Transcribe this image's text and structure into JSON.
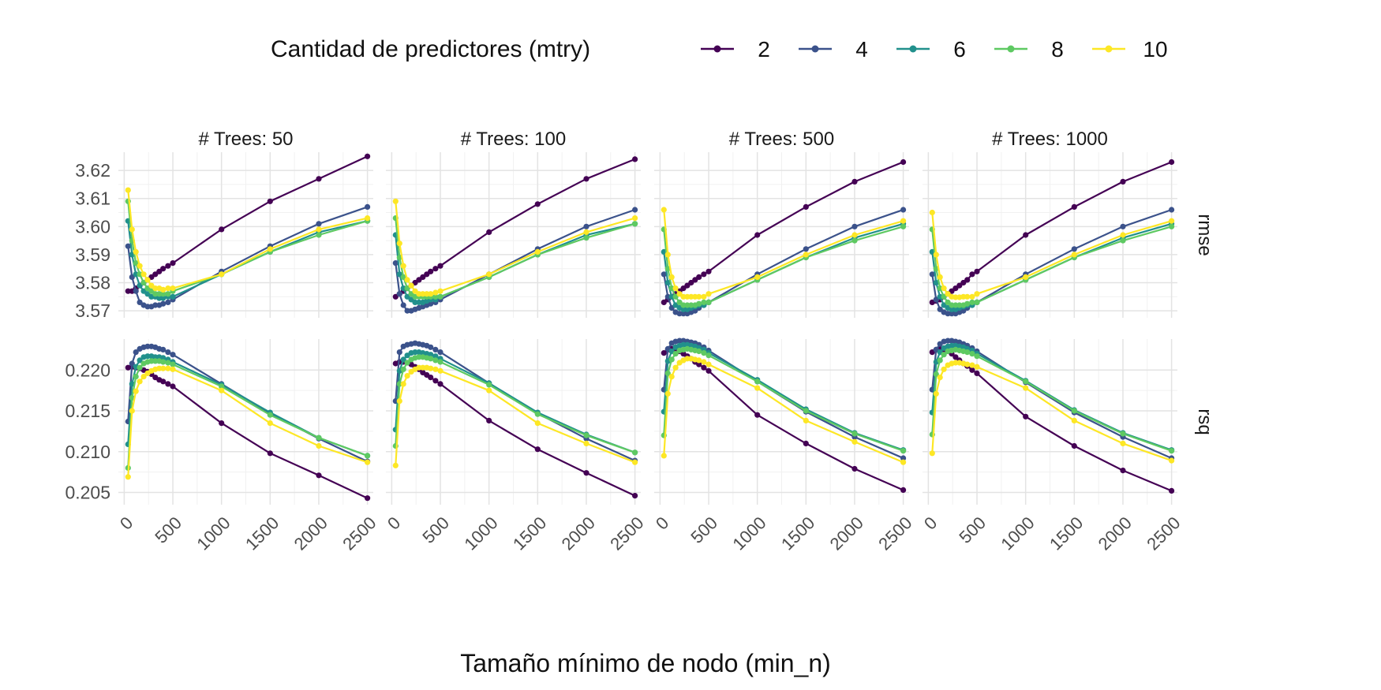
{
  "chart_data": {
    "type": "line",
    "xlabel": "Tamaño mínimo de nodo (min_n)",
    "ylabel": "",
    "legend": {
      "title": "Cantidad de predictores (mtry)",
      "position": "top"
    },
    "grid": true,
    "facet_cols": [
      "# Trees: 50",
      "# Trees: 100",
      "# Trees: 500",
      "# Trees: 1000"
    ],
    "facet_rows": [
      "rmse",
      "rsq"
    ],
    "x_ticks": [
      0,
      500,
      1000,
      1500,
      2000,
      2500
    ],
    "x_tick_labels": [
      "0",
      "500",
      "1000",
      "1500",
      "2000",
      "2500"
    ],
    "xlim": [
      -60,
      2560
    ],
    "x": [
      40,
      80,
      120,
      160,
      200,
      240,
      280,
      320,
      360,
      400,
      450,
      500,
      1000,
      1500,
      2000,
      2500
    ],
    "series": [
      {
        "name": "2",
        "color": "#440154"
      },
      {
        "name": "4",
        "color": "#3b528b"
      },
      {
        "name": "6",
        "color": "#21908c"
      },
      {
        "name": "8",
        "color": "#5ec962"
      },
      {
        "name": "10",
        "color": "#fde725"
      }
    ],
    "panels": [
      {
        "row": "rmse",
        "ylim": [
          3.5675,
          3.6265
        ],
        "y_ticks": [
          3.57,
          3.58,
          3.59,
          3.6,
          3.61,
          3.62
        ],
        "y_tick_labels": [
          "3.57",
          "3.58",
          "3.59",
          "3.60",
          "3.61",
          "3.62"
        ]
      },
      {
        "row": "rsq",
        "ylim": [
          0.2035,
          0.2238
        ],
        "y_ticks": [
          0.205,
          0.21,
          0.215,
          0.22
        ],
        "y_tick_labels": [
          "0.205",
          "0.210",
          "0.215",
          "0.220"
        ]
      }
    ],
    "values": {
      "rmse": [
        [
          [
            3.577,
            3.577,
            3.578,
            3.579,
            3.58,
            3.581,
            3.582,
            3.583,
            3.584,
            3.585,
            3.586,
            3.587,
            3.599,
            3.609,
            3.617,
            3.625
          ],
          [
            3.593,
            3.582,
            3.577,
            3.573,
            3.572,
            3.5715,
            3.5715,
            3.572,
            3.572,
            3.5725,
            3.573,
            3.574,
            3.584,
            3.593,
            3.601,
            3.607
          ],
          [
            3.602,
            3.59,
            3.583,
            3.579,
            3.577,
            3.576,
            3.575,
            3.575,
            3.5745,
            3.5745,
            3.575,
            3.575,
            3.583,
            3.591,
            3.598,
            3.602
          ],
          [
            3.609,
            3.595,
            3.587,
            3.583,
            3.58,
            3.578,
            3.577,
            3.576,
            3.576,
            3.576,
            3.576,
            3.577,
            3.583,
            3.591,
            3.597,
            3.602
          ],
          [
            3.613,
            3.599,
            3.591,
            3.586,
            3.583,
            3.581,
            3.579,
            3.578,
            3.578,
            3.5775,
            3.578,
            3.578,
            3.583,
            3.592,
            3.599,
            3.603
          ]
        ],
        [
          [
            3.575,
            3.576,
            3.577,
            3.578,
            3.579,
            3.58,
            3.581,
            3.582,
            3.583,
            3.584,
            3.585,
            3.586,
            3.598,
            3.608,
            3.617,
            3.624
          ],
          [
            3.587,
            3.576,
            3.572,
            3.57,
            3.57,
            3.5705,
            3.571,
            3.5715,
            3.572,
            3.5725,
            3.573,
            3.574,
            3.583,
            3.592,
            3.6,
            3.606
          ],
          [
            3.597,
            3.583,
            3.578,
            3.575,
            3.574,
            3.573,
            3.573,
            3.573,
            3.5735,
            3.574,
            3.574,
            3.575,
            3.582,
            3.59,
            3.597,
            3.601
          ],
          [
            3.603,
            3.589,
            3.582,
            3.578,
            3.576,
            3.575,
            3.575,
            3.575,
            3.575,
            3.575,
            3.575,
            3.575,
            3.582,
            3.59,
            3.596,
            3.601
          ],
          [
            3.609,
            3.594,
            3.586,
            3.581,
            3.579,
            3.577,
            3.576,
            3.576,
            3.576,
            3.576,
            3.5765,
            3.577,
            3.583,
            3.591,
            3.598,
            3.603
          ]
        ],
        [
          [
            3.573,
            3.574,
            3.575,
            3.576,
            3.577,
            3.578,
            3.579,
            3.58,
            3.581,
            3.582,
            3.583,
            3.584,
            3.597,
            3.607,
            3.616,
            3.623
          ],
          [
            3.583,
            3.575,
            3.571,
            3.5695,
            3.569,
            3.569,
            3.569,
            3.5695,
            3.57,
            3.571,
            3.572,
            3.573,
            3.583,
            3.592,
            3.6,
            3.606
          ],
          [
            3.591,
            3.58,
            3.575,
            3.572,
            3.571,
            3.5705,
            3.5705,
            3.571,
            3.5715,
            3.572,
            3.572,
            3.573,
            3.581,
            3.589,
            3.596,
            3.601
          ],
          [
            3.599,
            3.585,
            3.578,
            3.575,
            3.573,
            3.572,
            3.572,
            3.572,
            3.572,
            3.5725,
            3.573,
            3.573,
            3.581,
            3.589,
            3.595,
            3.6
          ],
          [
            3.606,
            3.59,
            3.582,
            3.578,
            3.576,
            3.575,
            3.575,
            3.575,
            3.575,
            3.575,
            3.575,
            3.576,
            3.582,
            3.59,
            3.597,
            3.602
          ]
        ],
        [
          [
            3.573,
            3.5735,
            3.574,
            3.575,
            3.576,
            3.577,
            3.578,
            3.579,
            3.58,
            3.581,
            3.583,
            3.584,
            3.597,
            3.607,
            3.616,
            3.623
          ],
          [
            3.583,
            3.574,
            3.5705,
            3.5695,
            3.569,
            3.569,
            3.569,
            3.5695,
            3.57,
            3.571,
            3.572,
            3.573,
            3.583,
            3.592,
            3.6,
            3.606
          ],
          [
            3.591,
            3.58,
            3.575,
            3.572,
            3.571,
            3.5705,
            3.5705,
            3.571,
            3.5715,
            3.572,
            3.572,
            3.573,
            3.581,
            3.589,
            3.596,
            3.601
          ],
          [
            3.599,
            3.585,
            3.578,
            3.575,
            3.573,
            3.572,
            3.572,
            3.572,
            3.572,
            3.5725,
            3.573,
            3.573,
            3.581,
            3.589,
            3.595,
            3.6
          ],
          [
            3.605,
            3.59,
            3.582,
            3.578,
            3.576,
            3.575,
            3.5748,
            3.5748,
            3.575,
            3.575,
            3.575,
            3.576,
            3.582,
            3.59,
            3.597,
            3.602
          ]
        ]
      ],
      "rsq": [
        [
          [
            0.2203,
            0.2204,
            0.2203,
            0.2202,
            0.22,
            0.2198,
            0.2195,
            0.2191,
            0.2188,
            0.2186,
            0.2183,
            0.218,
            0.2135,
            0.2098,
            0.2071,
            0.2043
          ],
          [
            0.2137,
            0.2208,
            0.2222,
            0.2226,
            0.2228,
            0.2229,
            0.2229,
            0.2228,
            0.2226,
            0.2225,
            0.2222,
            0.2219,
            0.2183,
            0.2147,
            0.2116,
            0.2088
          ],
          [
            0.2109,
            0.2183,
            0.2204,
            0.2212,
            0.2216,
            0.2217,
            0.2217,
            0.2216,
            0.2216,
            0.2215,
            0.2213,
            0.221,
            0.2182,
            0.2148,
            0.2117,
            0.2095
          ],
          [
            0.208,
            0.2166,
            0.2192,
            0.2203,
            0.2208,
            0.221,
            0.2211,
            0.2211,
            0.2211,
            0.221,
            0.2209,
            0.2207,
            0.218,
            0.2145,
            0.2117,
            0.2095
          ],
          [
            0.2069,
            0.215,
            0.2174,
            0.2186,
            0.2192,
            0.2196,
            0.2199,
            0.2201,
            0.2202,
            0.2202,
            0.2202,
            0.2201,
            0.2175,
            0.2135,
            0.2107,
            0.2087
          ]
        ],
        [
          [
            0.2208,
            0.221,
            0.221,
            0.2209,
            0.2207,
            0.2204,
            0.2201,
            0.2197,
            0.2194,
            0.2191,
            0.2187,
            0.2183,
            0.2138,
            0.2103,
            0.2074,
            0.2046
          ],
          [
            0.2162,
            0.2222,
            0.2229,
            0.2231,
            0.2232,
            0.2233,
            0.2232,
            0.2231,
            0.223,
            0.2228,
            0.2225,
            0.2222,
            0.2184,
            0.2147,
            0.2116,
            0.2089
          ],
          [
            0.2127,
            0.2199,
            0.2213,
            0.2218,
            0.2221,
            0.2222,
            0.2222,
            0.2221,
            0.222,
            0.2219,
            0.2217,
            0.2214,
            0.2184,
            0.2148,
            0.2121,
            0.2099
          ],
          [
            0.2107,
            0.2183,
            0.2201,
            0.2209,
            0.2213,
            0.2215,
            0.2216,
            0.2216,
            0.2215,
            0.2214,
            0.2212,
            0.221,
            0.2182,
            0.2146,
            0.212,
            0.2099
          ],
          [
            0.2083,
            0.2162,
            0.2183,
            0.2193,
            0.2198,
            0.2201,
            0.2203,
            0.2203,
            0.2203,
            0.2202,
            0.2201,
            0.2199,
            0.2175,
            0.2135,
            0.211,
            0.2087
          ]
        ],
        [
          [
            0.2221,
            0.2225,
            0.2226,
            0.2225,
            0.2223,
            0.222,
            0.2217,
            0.2214,
            0.221,
            0.2207,
            0.2203,
            0.2199,
            0.2145,
            0.211,
            0.2079,
            0.2053
          ],
          [
            0.2176,
            0.2226,
            0.2233,
            0.2235,
            0.2236,
            0.2236,
            0.2235,
            0.2234,
            0.2233,
            0.2231,
            0.2228,
            0.2224,
            0.2186,
            0.2149,
            0.2118,
            0.2092
          ],
          [
            0.2149,
            0.2211,
            0.2223,
            0.2228,
            0.223,
            0.2231,
            0.2231,
            0.223,
            0.2229,
            0.2227,
            0.2225,
            0.2221,
            0.2188,
            0.2152,
            0.2123,
            0.2102
          ],
          [
            0.212,
            0.2196,
            0.2213,
            0.222,
            0.2224,
            0.2225,
            0.2226,
            0.2225,
            0.2224,
            0.2223,
            0.2221,
            0.2218,
            0.2186,
            0.215,
            0.2122,
            0.2101
          ],
          [
            0.2095,
            0.2171,
            0.2192,
            0.2203,
            0.2209,
            0.2212,
            0.2214,
            0.2214,
            0.2213,
            0.2212,
            0.221,
            0.2207,
            0.2178,
            0.2138,
            0.2112,
            0.2087
          ]
        ],
        [
          [
            0.2222,
            0.2225,
            0.2226,
            0.2225,
            0.2223,
            0.222,
            0.2216,
            0.2212,
            0.2208,
            0.2205,
            0.22,
            0.2196,
            0.2143,
            0.2107,
            0.2077,
            0.2052
          ],
          [
            0.2176,
            0.2225,
            0.2232,
            0.2235,
            0.2236,
            0.2236,
            0.2235,
            0.2234,
            0.2232,
            0.223,
            0.2227,
            0.2223,
            0.2185,
            0.2148,
            0.2118,
            0.2092
          ],
          [
            0.2148,
            0.221,
            0.2222,
            0.2227,
            0.2229,
            0.223,
            0.223,
            0.2229,
            0.2228,
            0.2226,
            0.2224,
            0.222,
            0.2187,
            0.2151,
            0.2123,
            0.2102
          ],
          [
            0.2121,
            0.2195,
            0.2212,
            0.2219,
            0.2223,
            0.2224,
            0.2225,
            0.2224,
            0.2223,
            0.2222,
            0.222,
            0.2217,
            0.2186,
            0.215,
            0.2122,
            0.2101
          ],
          [
            0.2098,
            0.2171,
            0.2191,
            0.2201,
            0.2206,
            0.2208,
            0.2209,
            0.2209,
            0.2208,
            0.2207,
            0.2206,
            0.2204,
            0.2178,
            0.2138,
            0.211,
            0.2089
          ]
        ]
      ]
    }
  }
}
